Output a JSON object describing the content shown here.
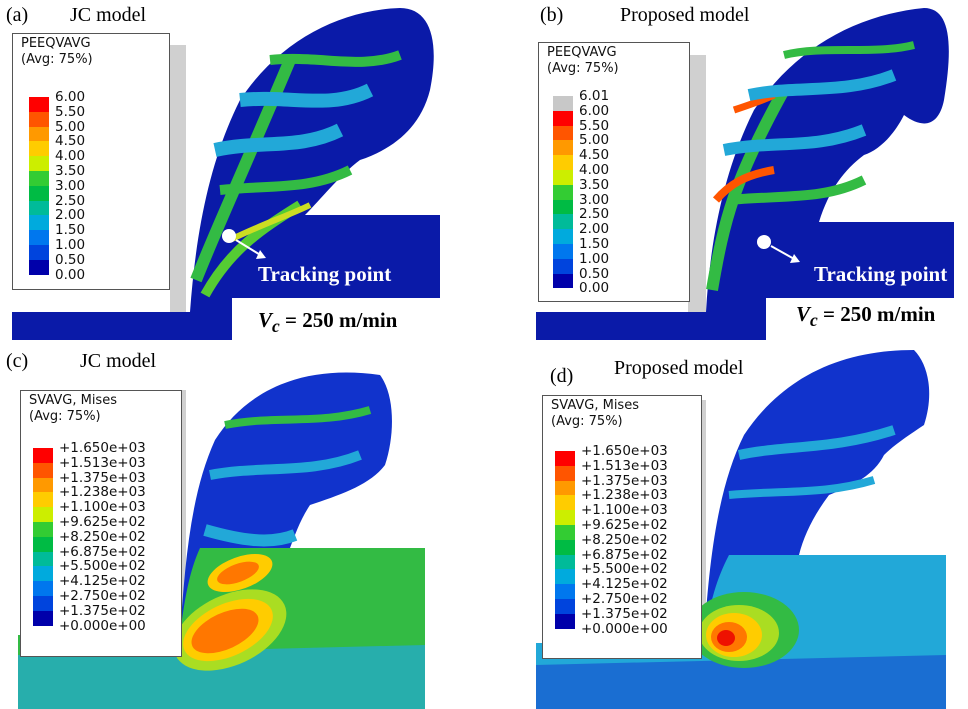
{
  "panels": {
    "a": {
      "label": "(a)",
      "title": "JC model",
      "legend": {
        "title1": "PEEQVAVG",
        "title2": "(Avg: 75%)",
        "values": [
          "6.00",
          "5.50",
          "5.00",
          "4.50",
          "4.00",
          "3.50",
          "3.00",
          "2.50",
          "2.00",
          "1.50",
          "1.00",
          "0.50",
          "0.00"
        ]
      },
      "tracking": "Tracking point",
      "vc_prefix": "V",
      "vc_sub": "c",
      "vc_value": "= 250 m/min"
    },
    "b": {
      "label": "(b)",
      "title": "Proposed model",
      "legend": {
        "title1": "PEEQVAVG",
        "title2": "(Avg: 75%)",
        "values": [
          "6.01",
          "6.00",
          "5.50",
          "5.00",
          "4.50",
          "4.00",
          "3.50",
          "3.00",
          "2.50",
          "2.00",
          "1.50",
          "1.00",
          "0.50",
          "0.00"
        ]
      },
      "tracking": "Tracking point",
      "vc_prefix": "V",
      "vc_sub": "c",
      "vc_value": "= 250 m/min"
    },
    "c": {
      "label": "(c)",
      "title": "JC model",
      "legend": {
        "title1": "SVAVG, Mises",
        "title2": "(Avg: 75%)",
        "values": [
          "+1.650e+03",
          "+1.513e+03",
          "+1.375e+03",
          "+1.238e+03",
          "+1.100e+03",
          "+9.625e+02",
          "+8.250e+02",
          "+6.875e+02",
          "+5.500e+02",
          "+4.125e+02",
          "+2.750e+02",
          "+1.375e+02",
          "+0.000e+00"
        ]
      }
    },
    "d": {
      "label": "(d)",
      "title": "Proposed model",
      "legend": {
        "title1": "SVAVG, Mises",
        "title2": "(Avg: 75%)",
        "values": [
          "+1.650e+03",
          "+1.513e+03",
          "+1.375e+03",
          "+1.238e+03",
          "+1.100e+03",
          "+9.625e+02",
          "+8.250e+02",
          "+6.875e+02",
          "+5.500e+02",
          "+4.125e+02",
          "+2.750e+02",
          "+1.375e+02",
          "+0.000e+00"
        ]
      }
    }
  },
  "colors": {
    "scale12": [
      "#ff0000",
      "#ff5500",
      "#ff9900",
      "#ffcc00",
      "#ccee00",
      "#33cc33",
      "#00bb44",
      "#00bb99",
      "#00aadd",
      "#0077ee",
      "#0044dd",
      "#0000aa"
    ],
    "grey": "#c8c8c8",
    "navy": "#0a1aa8",
    "blue": "#1133cc",
    "cyan": "#22a8d8",
    "green": "#33bb44",
    "lime": "#aadd22",
    "yellow": "#ffdd00",
    "orange": "#ff7700",
    "red": "#ee1100"
  }
}
